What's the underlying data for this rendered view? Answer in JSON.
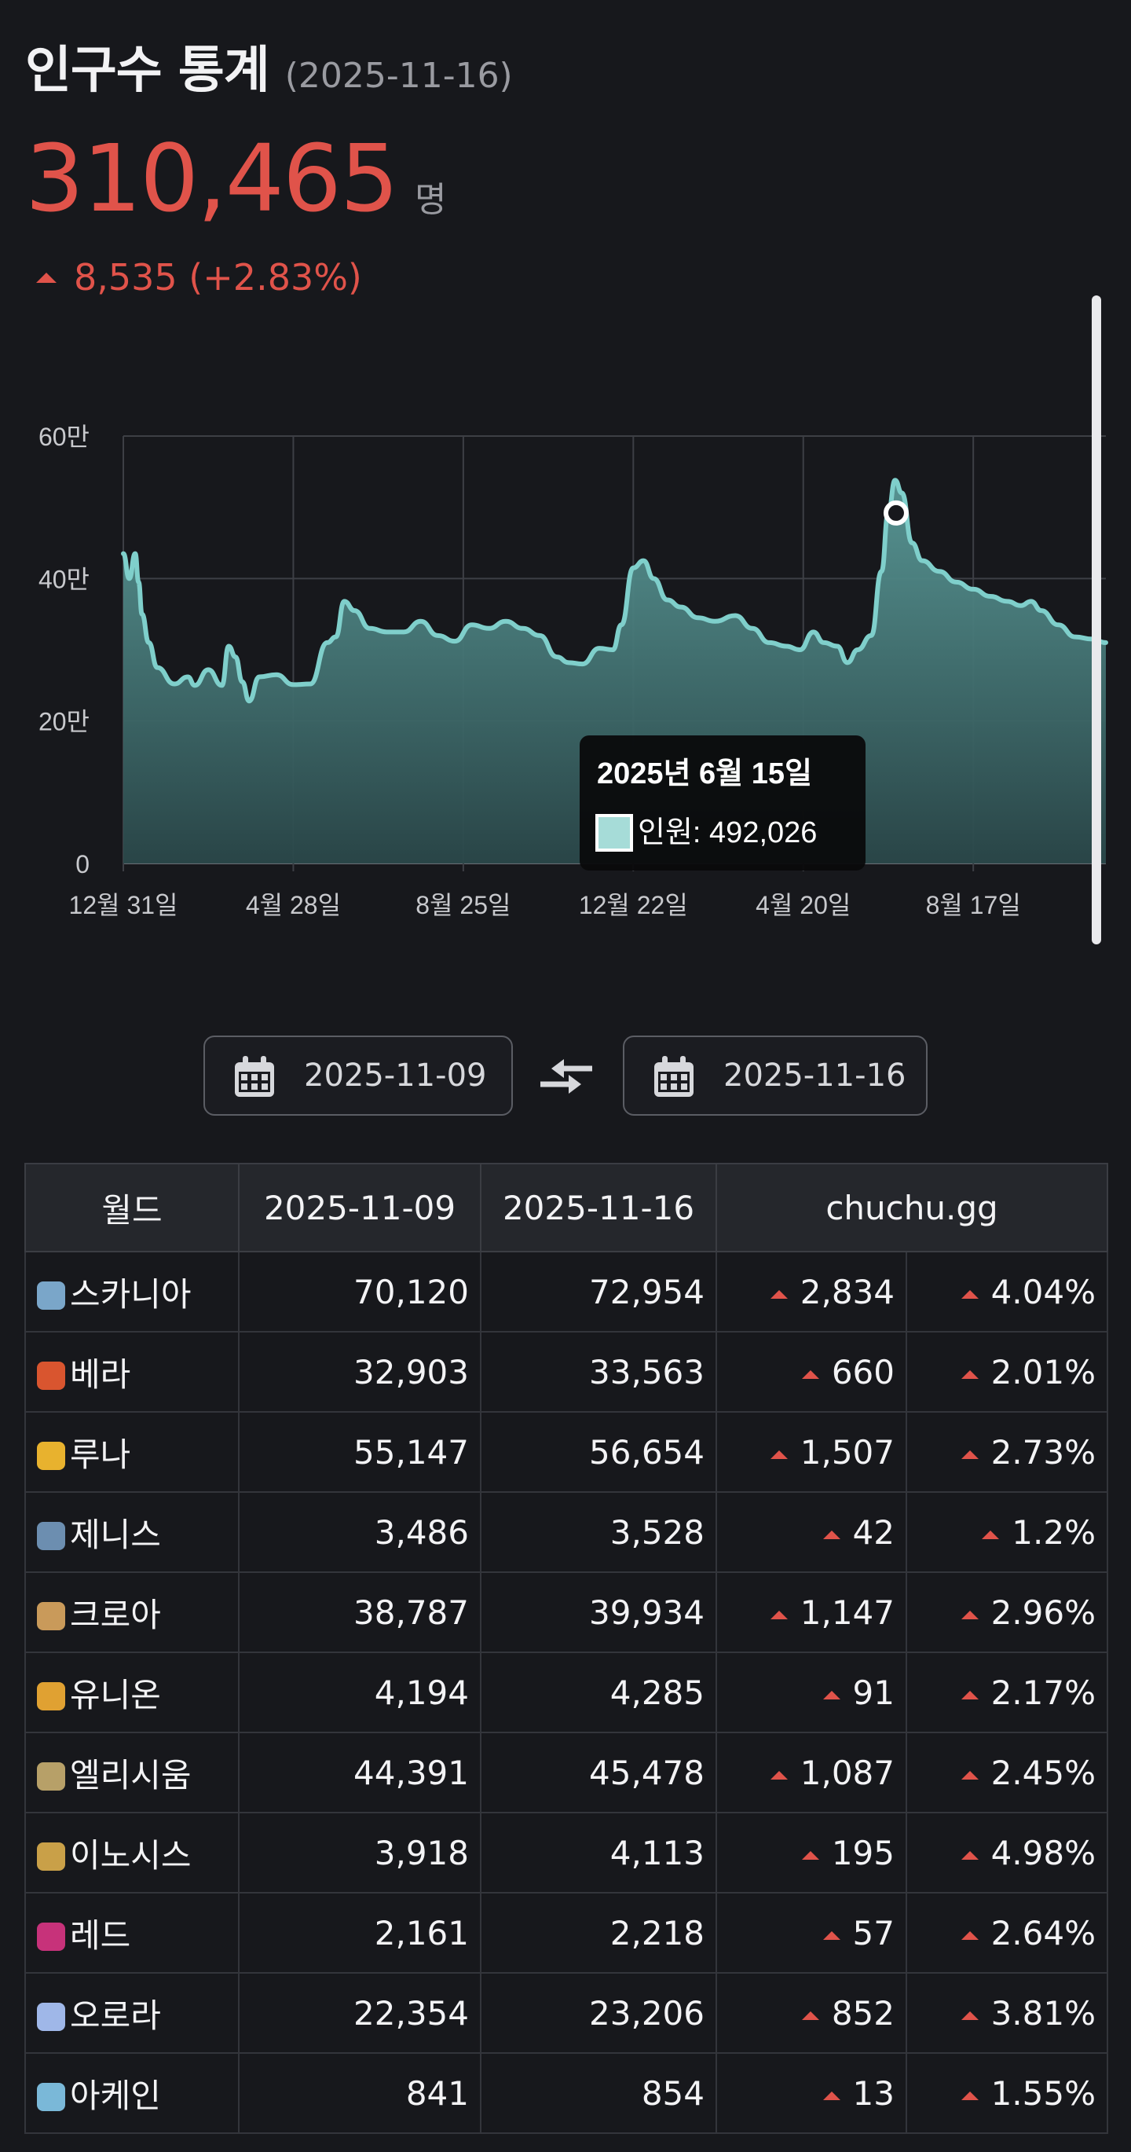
{
  "header": {
    "title": "인구수 통계",
    "date": "(2025-11-16)"
  },
  "summary": {
    "total": "310,465",
    "unit": "명",
    "delta": "8,535 (+2.83%)"
  },
  "colors": {
    "accent_red": "#e0534a",
    "chart_line": "#7fcfcb",
    "chart_fill_top": "#5a9a98",
    "chart_fill_bottom": "#2d4e50",
    "background": "#17181c"
  },
  "chart_data": {
    "type": "area",
    "series": [
      {
        "name": "인원",
        "values": [
          [
            0,
            435000
          ],
          [
            0.035,
            400000
          ],
          [
            0.07,
            435000
          ],
          [
            0.09,
            395000
          ],
          [
            0.11,
            350000
          ],
          [
            0.15,
            310000
          ],
          [
            0.2,
            275000
          ],
          [
            0.3,
            252000
          ],
          [
            0.38,
            262000
          ],
          [
            0.42,
            250000
          ],
          [
            0.5,
            272000
          ],
          [
            0.58,
            250000
          ],
          [
            0.62,
            305000
          ],
          [
            0.66,
            290000
          ],
          [
            0.7,
            255000
          ],
          [
            0.74,
            228000
          ],
          [
            0.8,
            262000
          ],
          [
            0.9,
            265000
          ],
          [
            1.0,
            251000
          ],
          [
            1.1,
            252000
          ],
          [
            1.2,
            310000
          ],
          [
            1.25,
            318000
          ],
          [
            1.3,
            368000
          ],
          [
            1.36,
            355000
          ],
          [
            1.45,
            330000
          ],
          [
            1.55,
            325000
          ],
          [
            1.65,
            325000
          ],
          [
            1.75,
            340000
          ],
          [
            1.85,
            320000
          ],
          [
            1.95,
            312000
          ],
          [
            2.05,
            335000
          ],
          [
            2.15,
            330000
          ],
          [
            2.25,
            340000
          ],
          [
            2.35,
            330000
          ],
          [
            2.45,
            320000
          ],
          [
            2.55,
            290000
          ],
          [
            2.62,
            282000
          ],
          [
            2.7,
            280000
          ],
          [
            2.8,
            302000
          ],
          [
            2.88,
            300000
          ],
          [
            2.93,
            335000
          ],
          [
            3.0,
            415000
          ],
          [
            3.06,
            425000
          ],
          [
            3.12,
            400000
          ],
          [
            3.2,
            370000
          ],
          [
            3.28,
            360000
          ],
          [
            3.38,
            345000
          ],
          [
            3.48,
            340000
          ],
          [
            3.6,
            348000
          ],
          [
            3.7,
            330000
          ],
          [
            3.8,
            310000
          ],
          [
            3.9,
            305000
          ],
          [
            3.98,
            300000
          ],
          [
            4.06,
            325000
          ],
          [
            4.12,
            310000
          ],
          [
            4.2,
            305000
          ],
          [
            4.26,
            282000
          ],
          [
            4.32,
            300000
          ],
          [
            4.4,
            320000
          ],
          [
            4.46,
            410000
          ],
          [
            4.5,
            492026
          ],
          [
            4.54,
            538000
          ],
          [
            4.58,
            520000
          ],
          [
            4.64,
            450000
          ],
          [
            4.7,
            425000
          ],
          [
            4.8,
            410000
          ],
          [
            4.9,
            395000
          ],
          [
            5.0,
            385000
          ],
          [
            5.1,
            375000
          ],
          [
            5.2,
            368000
          ],
          [
            5.28,
            362000
          ],
          [
            5.34,
            368000
          ],
          [
            5.4,
            355000
          ],
          [
            5.5,
            335000
          ],
          [
            5.6,
            318000
          ],
          [
            5.7,
            315000
          ],
          [
            5.78,
            310000
          ]
        ]
      }
    ],
    "x_ticks": [
      "12월 31일",
      "4월 28일",
      "8월 25일",
      "12월 22일",
      "4월 20일",
      "8월 17일"
    ],
    "y_ticks": [
      "0",
      "20만",
      "40만",
      "60만"
    ],
    "ylim": [
      0,
      600000
    ],
    "grid": true,
    "tooltip": {
      "title": "2025년 6월 15일",
      "label": "인원",
      "value": "492,026"
    }
  },
  "pickers": {
    "from": "2025-11-09",
    "to": "2025-11-16"
  },
  "table": {
    "headers": [
      "월드",
      "2025-11-09",
      "2025-11-16",
      "chuchu.gg"
    ],
    "rows": [
      {
        "name": "스카니아",
        "a": "70,120",
        "b": "72,954",
        "d": "2,834",
        "p": "4.04%",
        "icon": "scania-icon",
        "color": "#7aa6c9"
      },
      {
        "name": "베라",
        "a": "32,903",
        "b": "33,563",
        "d": "660",
        "p": "2.01%",
        "icon": "bera-icon",
        "color": "#d9552f"
      },
      {
        "name": "루나",
        "a": "55,147",
        "b": "56,654",
        "d": "1,507",
        "p": "2.73%",
        "icon": "luna-icon",
        "color": "#e8b22e"
      },
      {
        "name": "제니스",
        "a": "3,486",
        "b": "3,528",
        "d": "42",
        "p": "1.2%",
        "icon": "zenith-icon",
        "color": "#6c8eb0"
      },
      {
        "name": "크로아",
        "a": "38,787",
        "b": "39,934",
        "d": "1,147",
        "p": "2.96%",
        "icon": "croa-icon",
        "color": "#c99a5a"
      },
      {
        "name": "유니온",
        "a": "4,194",
        "b": "4,285",
        "d": "91",
        "p": "2.17%",
        "icon": "union-icon",
        "color": "#e0a132"
      },
      {
        "name": "엘리시움",
        "a": "44,391",
        "b": "45,478",
        "d": "1,087",
        "p": "2.45%",
        "icon": "elysium-icon",
        "color": "#b7a068"
      },
      {
        "name": "이노시스",
        "a": "3,918",
        "b": "4,113",
        "d": "195",
        "p": "4.98%",
        "icon": "enosis-icon",
        "color": "#c9a048"
      },
      {
        "name": "레드",
        "a": "2,161",
        "b": "2,218",
        "d": "57",
        "p": "2.64%",
        "icon": "red-icon",
        "color": "#c7327a"
      },
      {
        "name": "오로라",
        "a": "22,354",
        "b": "23,206",
        "d": "852",
        "p": "3.81%",
        "icon": "aurora-icon",
        "color": "#9fb7e8"
      },
      {
        "name": "아케인",
        "a": "841",
        "b": "854",
        "d": "13",
        "p": "1.55%",
        "icon": "arcane-icon",
        "color": "#7ab8d8"
      }
    ]
  }
}
